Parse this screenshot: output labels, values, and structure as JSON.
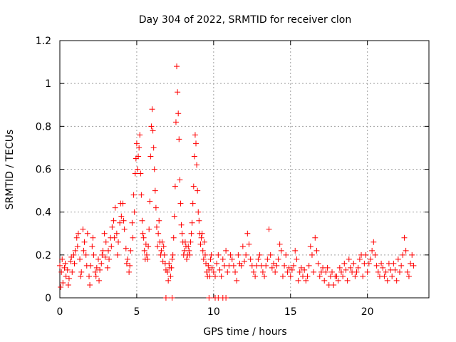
{
  "chart_data": {
    "type": "scatter",
    "title": "Day 304 of 2022, SRMTID for receiver clon",
    "xlabel": "GPS time / hours",
    "ylabel": "SRMTID / TECUs",
    "xlim": [
      0,
      24
    ],
    "ylim": [
      0,
      1.2
    ],
    "xticks": [
      0,
      5,
      10,
      15,
      20
    ],
    "xtick_labels": [
      "0",
      "5",
      "10",
      "15",
      "20"
    ],
    "yticks": [
      0,
      0.2,
      0.4,
      0.6,
      0.8,
      1.0,
      1.2
    ],
    "ytick_labels": [
      "0",
      "0.2",
      "0.4",
      "0.6",
      "0.8",
      "1",
      "1.2"
    ],
    "grid": true,
    "marker": "+",
    "color": "#ff0000",
    "series": [
      {
        "name": "SRMTID",
        "points": [
          [
            0.0,
            0.15
          ],
          [
            0.1,
            0.12
          ],
          [
            0.2,
            0.07
          ],
          [
            0.3,
            0.14
          ],
          [
            0.4,
            0.1
          ],
          [
            0.5,
            0.13
          ],
          [
            0.6,
            0.09
          ],
          [
            0.7,
            0.17
          ],
          [
            0.8,
            0.12
          ],
          [
            0.9,
            0.2
          ],
          [
            1.0,
            0.22
          ],
          [
            1.1,
            0.28
          ],
          [
            1.2,
            0.3
          ],
          [
            1.3,
            0.18
          ],
          [
            1.4,
            0.12
          ],
          [
            1.5,
            0.32
          ],
          [
            1.6,
            0.26
          ],
          [
            1.7,
            0.2
          ],
          [
            1.8,
            0.3
          ],
          [
            1.9,
            0.1
          ],
          [
            2.0,
            0.15
          ],
          [
            2.1,
            0.24
          ],
          [
            2.2,
            0.2
          ],
          [
            2.3,
            0.12
          ],
          [
            2.4,
            0.14
          ],
          [
            2.5,
            0.18
          ],
          [
            2.6,
            0.13
          ],
          [
            2.7,
            0.16
          ],
          [
            2.8,
            0.22
          ],
          [
            2.9,
            0.3
          ],
          [
            3.0,
            0.26
          ],
          [
            3.1,
            0.14
          ],
          [
            3.2,
            0.18
          ],
          [
            3.3,
            0.28
          ],
          [
            3.4,
            0.33
          ],
          [
            3.5,
            0.36
          ],
          [
            3.6,
            0.42
          ],
          [
            3.7,
            0.3
          ],
          [
            3.8,
            0.26
          ],
          [
            3.9,
            0.35
          ],
          [
            4.0,
            0.38
          ],
          [
            4.1,
            0.44
          ],
          [
            4.2,
            0.32
          ],
          [
            4.3,
            0.23
          ],
          [
            4.4,
            0.18
          ],
          [
            4.5,
            0.12
          ],
          [
            4.6,
            0.22
          ],
          [
            4.7,
            0.35
          ],
          [
            4.8,
            0.48
          ],
          [
            4.9,
            0.58
          ],
          [
            5.0,
            0.72
          ],
          [
            5.1,
            0.66
          ],
          [
            5.2,
            0.76
          ],
          [
            5.3,
            0.48
          ],
          [
            5.4,
            0.3
          ],
          [
            5.5,
            0.22
          ],
          [
            5.6,
            0.25
          ],
          [
            5.7,
            0.18
          ],
          [
            5.8,
            0.32
          ],
          [
            5.9,
            0.66
          ],
          [
            6.0,
            0.88
          ],
          [
            6.1,
            0.7
          ],
          [
            6.2,
            0.5
          ],
          [
            6.3,
            0.33
          ],
          [
            6.4,
            0.3
          ],
          [
            6.5,
            0.26
          ],
          [
            6.6,
            0.22
          ],
          [
            6.7,
            0.17
          ],
          [
            6.8,
            0.2
          ],
          [
            6.9,
            0.13
          ],
          [
            7.0,
            0.12
          ],
          [
            7.1,
            0.16
          ],
          [
            7.2,
            0.1
          ],
          [
            7.3,
            0.18
          ],
          [
            7.4,
            0.28
          ],
          [
            7.5,
            0.52
          ],
          [
            7.6,
            1.08
          ],
          [
            7.7,
            0.86
          ],
          [
            7.8,
            0.55
          ],
          [
            7.9,
            0.34
          ],
          [
            8.0,
            0.26
          ],
          [
            8.1,
            0.22
          ],
          [
            8.2,
            0.24
          ],
          [
            8.3,
            0.2
          ],
          [
            8.4,
            0.22
          ],
          [
            8.5,
            0.26
          ],
          [
            8.6,
            0.35
          ],
          [
            8.7,
            0.52
          ],
          [
            8.8,
            0.76
          ],
          [
            8.9,
            0.62
          ],
          [
            9.0,
            0.4
          ],
          [
            9.1,
            0.3
          ],
          [
            9.2,
            0.28
          ],
          [
            9.3,
            0.22
          ],
          [
            9.4,
            0.26
          ],
          [
            9.5,
            0.16
          ],
          [
            9.6,
            0.1
          ],
          [
            9.7,
            0.13
          ],
          [
            9.8,
            0.18
          ],
          [
            9.9,
            0.14
          ],
          [
            10.0,
            0.12
          ],
          [
            10.2,
            0.16
          ],
          [
            10.4,
            0.13
          ],
          [
            10.6,
            0.18
          ],
          [
            10.8,
            0.22
          ],
          [
            11.0,
            0.15
          ],
          [
            11.2,
            0.18
          ],
          [
            11.4,
            0.12
          ],
          [
            11.6,
            0.2
          ],
          [
            11.8,
            0.15
          ],
          [
            12.0,
            0.17
          ],
          [
            12.2,
            0.3
          ],
          [
            12.4,
            0.18
          ],
          [
            12.6,
            0.12
          ],
          [
            12.8,
            0.15
          ],
          [
            13.0,
            0.2
          ],
          [
            13.2,
            0.12
          ],
          [
            13.4,
            0.15
          ],
          [
            13.6,
            0.32
          ],
          [
            13.8,
            0.14
          ],
          [
            14.0,
            0.12
          ],
          [
            14.2,
            0.18
          ],
          [
            14.4,
            0.22
          ],
          [
            14.6,
            0.15
          ],
          [
            14.8,
            0.12
          ],
          [
            15.0,
            0.1
          ],
          [
            15.2,
            0.15
          ],
          [
            15.4,
            0.18
          ],
          [
            15.6,
            0.12
          ],
          [
            15.8,
            0.1
          ],
          [
            16.0,
            0.08
          ],
          [
            16.2,
            0.15
          ],
          [
            16.4,
            0.2
          ],
          [
            16.6,
            0.28
          ],
          [
            16.8,
            0.16
          ],
          [
            17.0,
            0.12
          ],
          [
            17.2,
            0.08
          ],
          [
            17.4,
            0.14
          ],
          [
            17.6,
            0.1
          ],
          [
            17.8,
            0.06
          ],
          [
            18.0,
            0.1
          ],
          [
            18.2,
            0.14
          ],
          [
            18.4,
            0.1
          ],
          [
            18.6,
            0.13
          ],
          [
            18.8,
            0.18
          ],
          [
            19.0,
            0.12
          ],
          [
            19.2,
            0.1
          ],
          [
            19.4,
            0.14
          ],
          [
            19.6,
            0.2
          ],
          [
            19.8,
            0.16
          ],
          [
            20.0,
            0.12
          ],
          [
            20.2,
            0.18
          ],
          [
            20.4,
            0.26
          ],
          [
            20.6,
            0.15
          ],
          [
            20.8,
            0.1
          ],
          [
            21.0,
            0.14
          ],
          [
            21.2,
            0.12
          ],
          [
            21.4,
            0.16
          ],
          [
            21.6,
            0.1
          ],
          [
            21.8,
            0.13
          ],
          [
            22.0,
            0.18
          ],
          [
            22.2,
            0.15
          ],
          [
            22.4,
            0.28
          ],
          [
            22.6,
            0.12
          ],
          [
            22.8,
            0.16
          ],
          [
            23.0,
            0.15
          ],
          [
            0.05,
            0.05
          ],
          [
            0.15,
            0.18
          ],
          [
            0.35,
            0.16
          ],
          [
            0.55,
            0.06
          ],
          [
            0.75,
            0.19
          ],
          [
            0.95,
            0.16
          ],
          [
            1.15,
            0.24
          ],
          [
            1.35,
            0.1
          ],
          [
            1.55,
            0.22
          ],
          [
            1.75,
            0.15
          ],
          [
            1.95,
            0.06
          ],
          [
            2.15,
            0.28
          ],
          [
            2.35,
            0.1
          ],
          [
            2.55,
            0.08
          ],
          [
            2.75,
            0.2
          ],
          [
            2.95,
            0.19
          ],
          [
            3.15,
            0.22
          ],
          [
            3.35,
            0.24
          ],
          [
            3.55,
            0.28
          ],
          [
            3.75,
            0.2
          ],
          [
            3.95,
            0.44
          ],
          [
            4.15,
            0.36
          ],
          [
            4.35,
            0.16
          ],
          [
            4.55,
            0.15
          ],
          [
            4.75,
            0.28
          ],
          [
            4.85,
            0.4
          ],
          [
            4.95,
            0.65
          ],
          [
            5.05,
            0.6
          ],
          [
            5.15,
            0.7
          ],
          [
            5.25,
            0.58
          ],
          [
            5.35,
            0.36
          ],
          [
            5.45,
            0.28
          ],
          [
            5.55,
            0.18
          ],
          [
            5.65,
            0.2
          ],
          [
            5.75,
            0.24
          ],
          [
            5.85,
            0.45
          ],
          [
            5.95,
            0.8
          ],
          [
            6.05,
            0.78
          ],
          [
            6.15,
            0.6
          ],
          [
            6.25,
            0.42
          ],
          [
            6.35,
            0.24
          ],
          [
            6.45,
            0.36
          ],
          [
            6.55,
            0.2
          ],
          [
            6.65,
            0.26
          ],
          [
            6.75,
            0.24
          ],
          [
            6.85,
            0.16
          ],
          [
            7.05,
            0.08
          ],
          [
            7.15,
            0.14
          ],
          [
            7.25,
            0.14
          ],
          [
            7.35,
            0.2
          ],
          [
            7.45,
            0.38
          ],
          [
            7.55,
            0.82
          ],
          [
            7.65,
            0.96
          ],
          [
            7.75,
            0.74
          ],
          [
            7.85,
            0.44
          ],
          [
            7.95,
            0.3
          ],
          [
            8.05,
            0.2
          ],
          [
            8.15,
            0.26
          ],
          [
            8.25,
            0.18
          ],
          [
            8.35,
            0.24
          ],
          [
            8.45,
            0.2
          ],
          [
            8.55,
            0.3
          ],
          [
            8.65,
            0.44
          ],
          [
            8.75,
            0.66
          ],
          [
            8.85,
            0.72
          ],
          [
            8.95,
            0.5
          ],
          [
            9.05,
            0.36
          ],
          [
            9.15,
            0.25
          ],
          [
            9.25,
            0.3
          ],
          [
            9.35,
            0.18
          ],
          [
            9.45,
            0.2
          ],
          [
            9.55,
            0.12
          ],
          [
            9.65,
            0.15
          ],
          [
            9.75,
            0.1
          ],
          [
            9.85,
            0.2
          ],
          [
            10.1,
            0.1
          ],
          [
            10.3,
            0.2
          ],
          [
            10.5,
            0.1
          ],
          [
            10.7,
            0.15
          ],
          [
            10.9,
            0.12
          ],
          [
            11.1,
            0.2
          ],
          [
            11.3,
            0.15
          ],
          [
            11.5,
            0.08
          ],
          [
            11.7,
            0.16
          ],
          [
            11.9,
            0.24
          ],
          [
            12.1,
            0.2
          ],
          [
            12.3,
            0.25
          ],
          [
            12.5,
            0.15
          ],
          [
            12.7,
            0.1
          ],
          [
            12.9,
            0.18
          ],
          [
            13.1,
            0.15
          ],
          [
            13.3,
            0.1
          ],
          [
            13.5,
            0.18
          ],
          [
            13.7,
            0.2
          ],
          [
            13.9,
            0.16
          ],
          [
            14.1,
            0.15
          ],
          [
            14.3,
            0.25
          ],
          [
            14.5,
            0.1
          ],
          [
            14.7,
            0.2
          ],
          [
            14.9,
            0.14
          ],
          [
            15.1,
            0.13
          ],
          [
            15.3,
            0.22
          ],
          [
            15.5,
            0.08
          ],
          [
            15.7,
            0.14
          ],
          [
            15.9,
            0.13
          ],
          [
            16.1,
            0.1
          ],
          [
            16.3,
            0.24
          ],
          [
            16.5,
            0.12
          ],
          [
            16.7,
            0.22
          ],
          [
            16.9,
            0.1
          ],
          [
            17.1,
            0.14
          ],
          [
            17.3,
            0.12
          ],
          [
            17.5,
            0.06
          ],
          [
            17.7,
            0.12
          ],
          [
            17.9,
            0.1
          ],
          [
            18.1,
            0.08
          ],
          [
            18.3,
            0.12
          ],
          [
            18.5,
            0.16
          ],
          [
            18.7,
            0.08
          ],
          [
            18.9,
            0.14
          ],
          [
            19.1,
            0.16
          ],
          [
            19.3,
            0.12
          ],
          [
            19.5,
            0.18
          ],
          [
            19.7,
            0.1
          ],
          [
            19.9,
            0.2
          ],
          [
            20.1,
            0.16
          ],
          [
            20.3,
            0.22
          ],
          [
            20.5,
            0.2
          ],
          [
            20.7,
            0.12
          ],
          [
            20.9,
            0.16
          ],
          [
            21.1,
            0.1
          ],
          [
            21.3,
            0.08
          ],
          [
            21.5,
            0.13
          ],
          [
            21.7,
            0.16
          ],
          [
            21.9,
            0.08
          ],
          [
            22.1,
            0.12
          ],
          [
            22.3,
            0.2
          ],
          [
            22.5,
            0.22
          ],
          [
            22.7,
            0.1
          ],
          [
            22.9,
            0.2
          ],
          [
            6.9,
            0.0
          ],
          [
            7.3,
            0.0
          ],
          [
            9.7,
            0.0
          ],
          [
            10.1,
            0.0
          ],
          [
            10.3,
            0.0
          ],
          [
            10.6,
            0.0
          ],
          [
            10.8,
            0.0
          ]
        ]
      }
    ]
  }
}
